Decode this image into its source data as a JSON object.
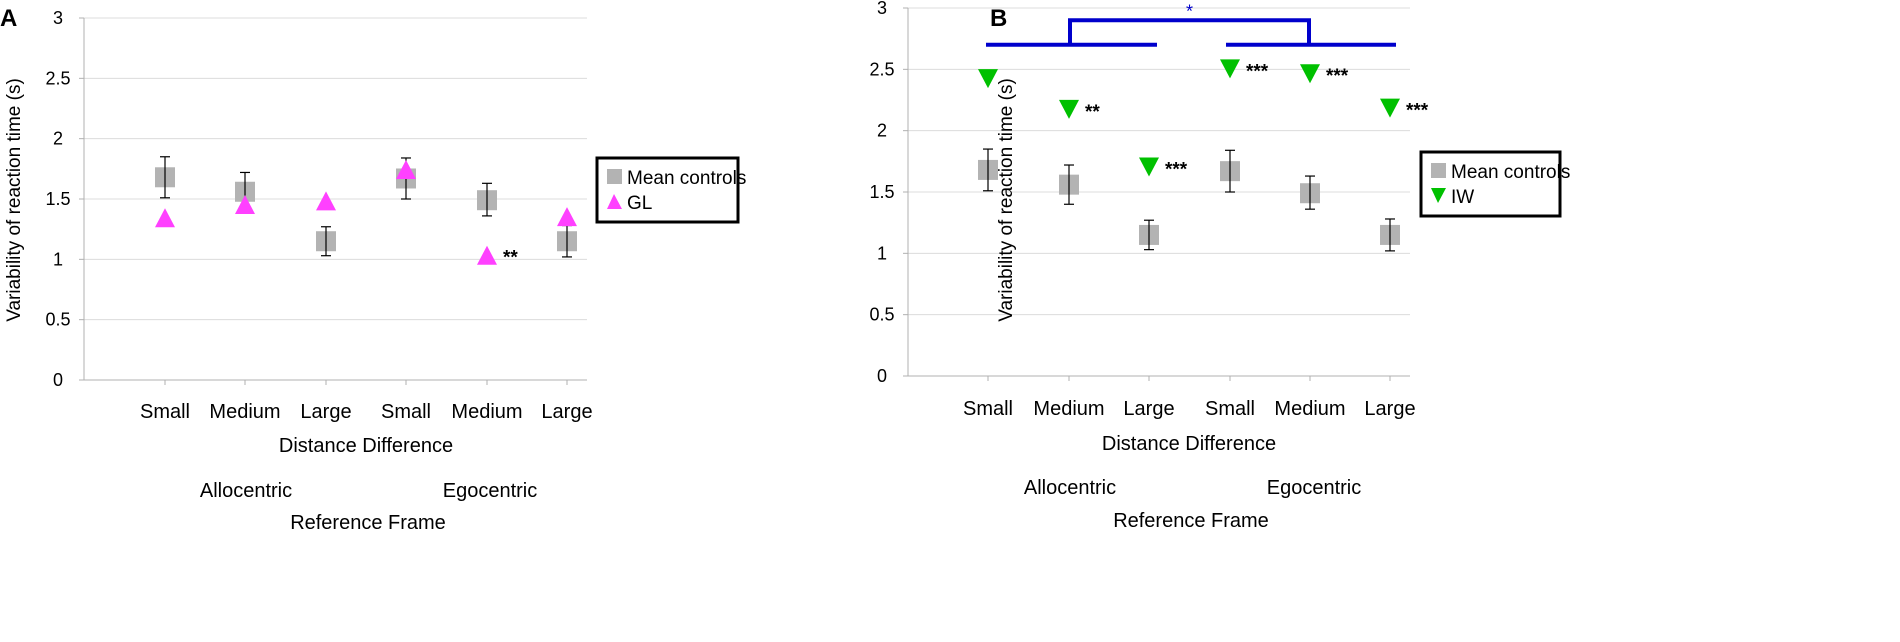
{
  "chart_data": [
    {
      "type": "scatter",
      "panel_label": "A",
      "ylabel": "Variability of reaction time (s)",
      "ylim": [
        0,
        3
      ],
      "yticks": [
        "0",
        "0.5",
        "1",
        "1.5",
        "2",
        "2.5",
        "3"
      ],
      "categories": [
        "Small",
        "Medium",
        "Large",
        "Small",
        "Medium",
        "Large"
      ],
      "xlabel": "Distance Difference",
      "groups": [
        "Allocentric",
        "Egocentric"
      ],
      "group_label": "Reference Frame",
      "legend_position": "right",
      "series": [
        {
          "name": "Mean controls",
          "marker": "square",
          "color": "#b3b3b3",
          "values": [
            1.68,
            1.56,
            1.15,
            1.67,
            1.49,
            1.15
          ],
          "err_low": [
            1.51,
            1.4,
            1.03,
            1.5,
            1.36,
            1.02
          ],
          "err_high": [
            1.85,
            1.72,
            1.27,
            1.84,
            1.63,
            1.28
          ]
        },
        {
          "name": "GL",
          "marker": "triangle-up",
          "color": "#ff40ff",
          "values": [
            1.34,
            1.45,
            1.48,
            1.74,
            1.03,
            1.35
          ]
        }
      ],
      "annotations": [
        {
          "index": 4,
          "text": "**"
        }
      ]
    },
    {
      "type": "scatter",
      "panel_label": "B",
      "ylabel": "Variability of reaction time (s)",
      "ylim": [
        0,
        3
      ],
      "yticks": [
        "0",
        "0.5",
        "1",
        "1.5",
        "2",
        "2.5",
        "3"
      ],
      "categories": [
        "Small",
        "Medium",
        "Large",
        "Small",
        "Medium",
        "Large"
      ],
      "xlabel": "Distance Difference",
      "groups": [
        "Allocentric",
        "Egocentric"
      ],
      "group_label": "Reference Frame",
      "legend_position": "right",
      "series": [
        {
          "name": "Mean controls",
          "marker": "square",
          "color": "#b3b3b3",
          "values": [
            1.68,
            1.56,
            1.15,
            1.67,
            1.49,
            1.15
          ],
          "err_low": [
            1.51,
            1.4,
            1.03,
            1.5,
            1.36,
            1.02
          ],
          "err_high": [
            1.85,
            1.72,
            1.27,
            1.84,
            1.63,
            1.28
          ]
        },
        {
          "name": "IW",
          "marker": "triangle-down",
          "color": "#00c000",
          "values": [
            2.42,
            2.17,
            1.7,
            2.5,
            2.46,
            2.18
          ]
        }
      ],
      "annotations": [
        {
          "index": 1,
          "text": "**"
        },
        {
          "index": 2,
          "text": "***"
        },
        {
          "index": 3,
          "text": "***"
        },
        {
          "index": 4,
          "text": "***"
        },
        {
          "index": 5,
          "text": "***"
        }
      ],
      "bracket": {
        "label": "*",
        "color": "#0000cc",
        "y_level": 2.7,
        "y_top": 2.9
      }
    }
  ]
}
